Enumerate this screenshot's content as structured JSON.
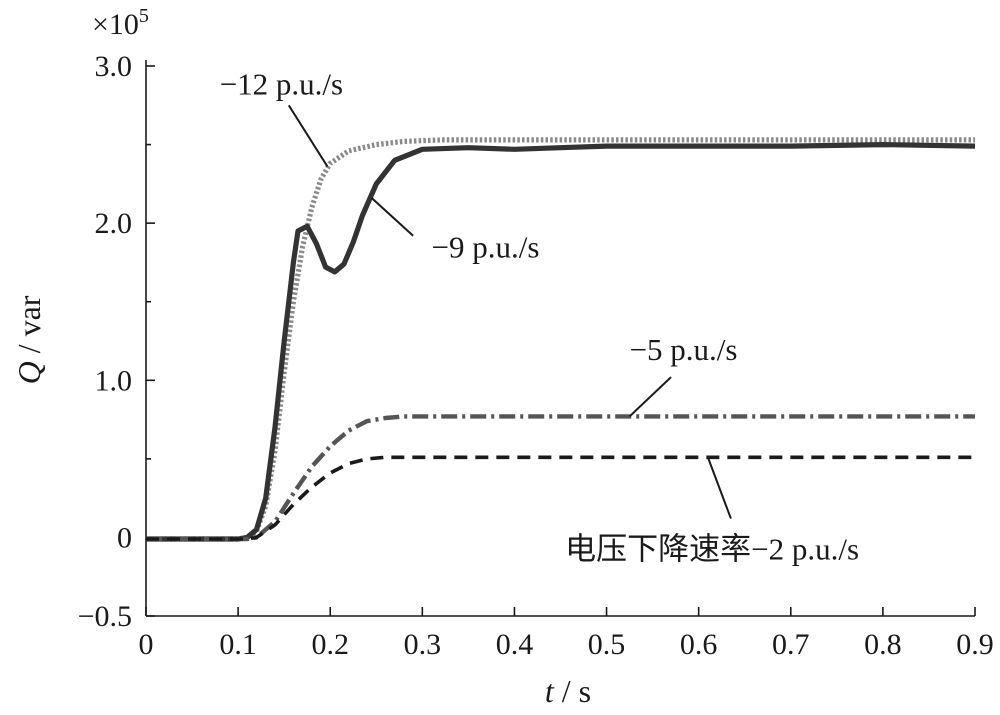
{
  "chart_data": {
    "type": "line",
    "xlabel": {
      "var": "t",
      "unit": " / s"
    },
    "ylabel": {
      "var": "Q",
      "unit": " / var"
    },
    "y_multiplier": {
      "times": "×",
      "base": "10",
      "exp": "5"
    },
    "xlim": [
      0,
      0.9
    ],
    "ylim": [
      -0.5,
      3.0
    ],
    "x_ticks": [
      {
        "value": 0,
        "label": "0"
      },
      {
        "value": 0.1,
        "label": "0.1"
      },
      {
        "value": 0.2,
        "label": "0.2"
      },
      {
        "value": 0.3,
        "label": "0.3"
      },
      {
        "value": 0.4,
        "label": "0.4"
      },
      {
        "value": 0.5,
        "label": "0.5"
      },
      {
        "value": 0.6,
        "label": "0.6"
      },
      {
        "value": 0.7,
        "label": "0.7"
      },
      {
        "value": 0.8,
        "label": "0.8"
      },
      {
        "value": 0.9,
        "label": "0.9"
      }
    ],
    "y_ticks": [
      {
        "value": -0.5,
        "label": "−0.5"
      },
      {
        "value": 0,
        "label": "0"
      },
      {
        "value": 1.0,
        "label": "1.0"
      },
      {
        "value": 2.0,
        "label": "2.0"
      },
      {
        "value": 3.0,
        "label": "3.0"
      }
    ],
    "grid": false,
    "series": [
      {
        "name": "−12 p.u./s",
        "style": "dotted",
        "color": "#8a8a8a",
        "x": [
          0,
          0.1,
          0.11,
          0.12,
          0.13,
          0.14,
          0.15,
          0.16,
          0.17,
          0.18,
          0.19,
          0.2,
          0.22,
          0.25,
          0.28,
          0.32,
          0.4,
          0.5,
          0.6,
          0.7,
          0.8,
          0.9
        ],
        "y": [
          -0.01,
          -0.01,
          0.0,
          0.04,
          0.2,
          0.55,
          1.05,
          1.5,
          1.85,
          2.1,
          2.28,
          2.38,
          2.46,
          2.5,
          2.52,
          2.53,
          2.53,
          2.53,
          2.53,
          2.53,
          2.53,
          2.53
        ]
      },
      {
        "name": "−9 p.u./s",
        "style": "solid",
        "color": "#333333",
        "x": [
          0,
          0.1,
          0.11,
          0.12,
          0.13,
          0.14,
          0.15,
          0.16,
          0.165,
          0.175,
          0.185,
          0.195,
          0.205,
          0.215,
          0.225,
          0.235,
          0.25,
          0.27,
          0.3,
          0.35,
          0.4,
          0.45,
          0.5,
          0.6,
          0.7,
          0.8,
          0.9
        ],
        "y": [
          -0.01,
          -0.01,
          0.0,
          0.05,
          0.25,
          0.7,
          1.25,
          1.75,
          1.95,
          1.98,
          1.87,
          1.72,
          1.69,
          1.74,
          1.88,
          2.05,
          2.25,
          2.4,
          2.47,
          2.48,
          2.47,
          2.48,
          2.49,
          2.49,
          2.49,
          2.5,
          2.49
        ]
      },
      {
        "name": "−5 p.u./s",
        "style": "dashdot",
        "color": "#555555",
        "x": [
          0,
          0.11,
          0.12,
          0.14,
          0.16,
          0.18,
          0.2,
          0.22,
          0.24,
          0.26,
          0.28,
          0.3,
          0.4,
          0.5,
          0.6,
          0.7,
          0.8,
          0.9
        ],
        "y": [
          -0.01,
          -0.01,
          0.0,
          0.1,
          0.28,
          0.45,
          0.58,
          0.68,
          0.74,
          0.76,
          0.77,
          0.77,
          0.77,
          0.77,
          0.77,
          0.77,
          0.77,
          0.77
        ]
      },
      {
        "name": "电压下降速率−2 p.u./s",
        "style": "dashed",
        "color": "#1a1a1a",
        "x": [
          0,
          0.11,
          0.12,
          0.14,
          0.16,
          0.18,
          0.2,
          0.22,
          0.24,
          0.26,
          0.28,
          0.3,
          0.4,
          0.5,
          0.6,
          0.7,
          0.8,
          0.9
        ],
        "y": [
          -0.01,
          -0.01,
          0.0,
          0.08,
          0.21,
          0.32,
          0.41,
          0.47,
          0.5,
          0.51,
          0.51,
          0.51,
          0.51,
          0.51,
          0.51,
          0.51,
          0.51,
          0.51
        ]
      }
    ],
    "annotations": [
      {
        "text": "−12 p.u./s",
        "anchor": [
          0.155,
          2.75
        ],
        "target": [
          0.197,
          2.36
        ],
        "text_at": [
          0.08,
          2.82
        ]
      },
      {
        "text": "−9 p.u./s",
        "anchor": [
          0.29,
          1.92
        ],
        "target": [
          0.245,
          2.16
        ],
        "text_at": [
          0.31,
          1.78
        ]
      },
      {
        "text": "−5 p.u./s",
        "anchor": [
          0.57,
          1.02
        ],
        "target": [
          0.525,
          0.77
        ],
        "text_at": [
          0.525,
          1.13
        ]
      },
      {
        "text": "电压下降速率−2 p.u./s",
        "anchor": [
          0.635,
          0.12
        ],
        "target": [
          0.61,
          0.51
        ],
        "text_at": [
          0.455,
          -0.14
        ]
      }
    ]
  }
}
